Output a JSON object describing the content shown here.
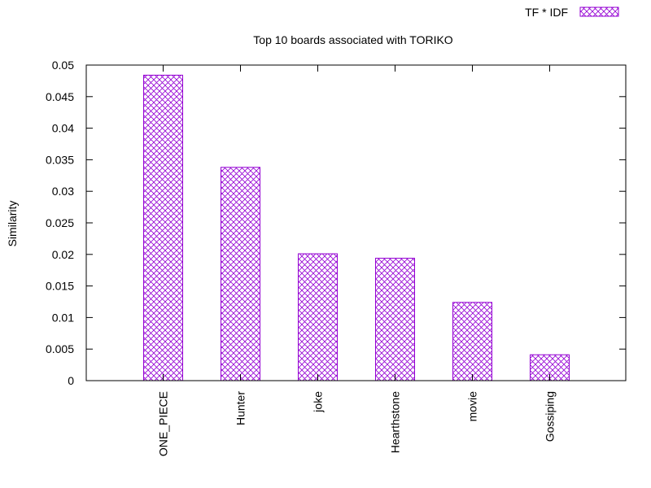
{
  "chart_data": {
    "type": "bar",
    "title": "Top 10 boards associated with TORIKO",
    "xlabel": "",
    "ylabel": "Similarity",
    "ylim": [
      0,
      0.05
    ],
    "yticks": [
      "0",
      "0.005",
      "0.01",
      "0.015",
      "0.02",
      "0.025",
      "0.03",
      "0.035",
      "0.04",
      "0.045",
      "0.05"
    ],
    "categories": [
      "ONE_PIECE",
      "Hunter",
      "joke",
      "Hearthstone",
      "movie",
      "Gossiping"
    ],
    "series": [
      {
        "name": "TF * IDF",
        "color": "#9400d3",
        "pattern": "crosshatch",
        "values": [
          0.0484,
          0.0338,
          0.0201,
          0.0194,
          0.0124,
          0.0041
        ]
      }
    ],
    "legend_position": "top-right",
    "grid": false
  }
}
